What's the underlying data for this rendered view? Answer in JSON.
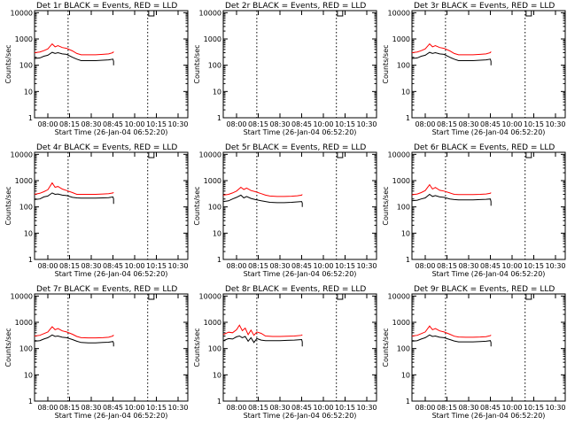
{
  "chart_data": {
    "type": "line",
    "layout": "3x3 grid",
    "ylabel": "Counts/sec",
    "xlabel": "Start Time (26-Jan-04 06:52:20)",
    "yscale": "log",
    "ylim": [
      1,
      12000
    ],
    "xlim": [
      "07:50",
      "10:35"
    ],
    "yticks": [
      {
        "value": 1,
        "label": "1"
      },
      {
        "value": 10,
        "label": "10"
      },
      {
        "value": 100,
        "label": "100"
      },
      {
        "value": 1000,
        "label": "1000"
      },
      {
        "value": 10000,
        "label": "10000"
      }
    ],
    "xticks": [
      "08:00",
      "08:15",
      "08:30",
      "08:45",
      "10:00",
      "10:15",
      "10:30"
    ],
    "series_legend": "BLACK = Events, RED = LLD",
    "panels": [
      {
        "title": "Det 1r BLACK = Events, RED = LLD",
        "markers": [
          "08:14",
          "10:09"
        ],
        "flag": "10:10",
        "series": [
          {
            "name": "Events",
            "color": "#000000",
            "x": [
              "07:50",
              "07:54",
              "07:57",
              "08:00",
              "08:03",
              "08:05",
              "08:07",
              "08:10",
              "08:13",
              "08:17",
              "08:20",
              "08:23",
              "08:28",
              "08:33",
              "08:38",
              "08:42",
              "08:45",
              "08:47",
              "08:47"
            ],
            "values": [
              180,
              190,
              220,
              240,
              310,
              280,
              300,
              270,
              260,
              200,
              170,
              150,
              150,
              150,
              155,
              160,
              170,
              140,
              100
            ]
          },
          {
            "name": "LLD",
            "color": "#ff0000",
            "x": [
              "07:50",
              "07:54",
              "07:57",
              "08:00",
              "08:03",
              "08:05",
              "08:07",
              "08:10",
              "08:13",
              "08:17",
              "08:20",
              "08:23",
              "08:28",
              "08:33",
              "08:38",
              "08:42",
              "08:45",
              "08:47"
            ],
            "values": [
              300,
              320,
              360,
              420,
              650,
              500,
              560,
              470,
              440,
              350,
              280,
              250,
              250,
              250,
              260,
              270,
              300,
              330
            ]
          }
        ]
      },
      {
        "title": "Det 2r BLACK = Events, RED = LLD",
        "markers": [
          "08:14",
          "10:09"
        ],
        "flag": "10:10",
        "series": []
      },
      {
        "title": "Det 3r BLACK = Events, RED = LLD",
        "markers": [
          "08:14",
          "10:09"
        ],
        "flag": "10:10",
        "series": [
          {
            "name": "Events",
            "color": "#000000",
            "x": [
              "07:50",
              "07:54",
              "07:57",
              "08:00",
              "08:03",
              "08:05",
              "08:07",
              "08:10",
              "08:13",
              "08:17",
              "08:20",
              "08:23",
              "08:28",
              "08:33",
              "08:38",
              "08:42",
              "08:45",
              "08:47",
              "08:47"
            ],
            "values": [
              180,
              190,
              220,
              240,
              310,
              280,
              300,
              270,
              260,
              200,
              170,
              150,
              150,
              150,
              155,
              160,
              170,
              140,
              100
            ]
          },
          {
            "name": "LLD",
            "color": "#ff0000",
            "x": [
              "07:50",
              "07:54",
              "07:57",
              "08:00",
              "08:03",
              "08:05",
              "08:07",
              "08:10",
              "08:13",
              "08:17",
              "08:20",
              "08:23",
              "08:28",
              "08:33",
              "08:38",
              "08:42",
              "08:45",
              "08:47"
            ],
            "values": [
              300,
              320,
              360,
              420,
              650,
              500,
              560,
              470,
              440,
              350,
              280,
              250,
              250,
              250,
              260,
              270,
              300,
              330
            ]
          }
        ]
      },
      {
        "title": "Det 4r BLACK = Events, RED = LLD",
        "markers": [
          "08:14",
          "10:09"
        ],
        "flag": "10:10",
        "series": [
          {
            "name": "Events",
            "color": "#000000",
            "x": [
              "07:50",
              "07:54",
              "07:57",
              "08:00",
              "08:03",
              "08:05",
              "08:07",
              "08:10",
              "08:13",
              "08:17",
              "08:20",
              "08:23",
              "08:28",
              "08:33",
              "08:38",
              "08:42",
              "08:45",
              "08:47",
              "08:47"
            ],
            "values": [
              190,
              200,
              240,
              260,
              340,
              300,
              310,
              280,
              270,
              230,
              220,
              215,
              215,
              215,
              220,
              225,
              240,
              200,
              130
            ]
          },
          {
            "name": "LLD",
            "color": "#ff0000",
            "x": [
              "07:50",
              "07:54",
              "07:57",
              "08:00",
              "08:03",
              "08:05",
              "08:07",
              "08:10",
              "08:13",
              "08:17",
              "08:20",
              "08:23",
              "08:28",
              "08:33",
              "08:38",
              "08:42",
              "08:45",
              "08:47"
            ],
            "values": [
              300,
              330,
              380,
              450,
              820,
              560,
              600,
              480,
              420,
              350,
              300,
              300,
              300,
              300,
              310,
              320,
              340,
              360
            ]
          }
        ]
      },
      {
        "title": "Det 5r BLACK = Events, RED = LLD",
        "markers": [
          "08:14",
          "10:09"
        ],
        "flag": "10:10",
        "series": [
          {
            "name": "Events",
            "color": "#000000",
            "x": [
              "07:50",
              "07:54",
              "07:57",
              "08:00",
              "08:03",
              "08:05",
              "08:07",
              "08:10",
              "08:13",
              "08:17",
              "08:20",
              "08:23",
              "08:28",
              "08:33",
              "08:38",
              "08:42",
              "08:45",
              "08:47",
              "08:47"
            ],
            "values": [
              160,
              170,
              200,
              230,
              280,
              220,
              250,
              210,
              190,
              170,
              160,
              150,
              145,
              145,
              150,
              155,
              160,
              140,
              100
            ]
          },
          {
            "name": "LLD",
            "color": "#ff0000",
            "x": [
              "07:50",
              "07:54",
              "07:57",
              "08:00",
              "08:03",
              "08:05",
              "08:07",
              "08:10",
              "08:13",
              "08:17",
              "08:20",
              "08:23",
              "08:28",
              "08:33",
              "08:38",
              "08:42",
              "08:45",
              "08:47"
            ],
            "values": [
              280,
              300,
              340,
              400,
              560,
              460,
              520,
              420,
              380,
              320,
              280,
              260,
              250,
              250,
              255,
              265,
              280,
              300
            ]
          }
        ]
      },
      {
        "title": "Det 6r BLACK = Events, RED = LLD",
        "markers": [
          "08:14",
          "10:09"
        ],
        "flag": "10:10",
        "series": [
          {
            "name": "Events",
            "color": "#000000",
            "x": [
              "07:50",
              "07:54",
              "07:57",
              "08:00",
              "08:03",
              "08:05",
              "08:07",
              "08:10",
              "08:13",
              "08:17",
              "08:20",
              "08:23",
              "08:28",
              "08:33",
              "08:38",
              "08:42",
              "08:45",
              "08:47",
              "08:47"
            ],
            "values": [
              170,
              180,
              200,
              220,
              300,
              250,
              270,
              240,
              230,
              200,
              190,
              185,
              185,
              185,
              190,
              195,
              200,
              160,
              110
            ]
          },
          {
            "name": "LLD",
            "color": "#ff0000",
            "x": [
              "07:50",
              "07:54",
              "07:57",
              "08:00",
              "08:03",
              "08:05",
              "08:07",
              "08:10",
              "08:13",
              "08:17",
              "08:20",
              "08:23",
              "08:28",
              "08:33",
              "08:38",
              "08:42",
              "08:45",
              "08:47"
            ],
            "values": [
              290,
              310,
              350,
              420,
              700,
              480,
              550,
              430,
              400,
              340,
              300,
              295,
              295,
              295,
              300,
              310,
              330,
              350
            ]
          }
        ]
      },
      {
        "title": "Det 7r BLACK = Events, RED = LLD",
        "markers": [
          "08:14",
          "10:09"
        ],
        "flag": "10:10",
        "series": [
          {
            "name": "Events",
            "color": "#000000",
            "x": [
              "07:50",
              "07:54",
              "07:57",
              "08:00",
              "08:03",
              "08:05",
              "08:07",
              "08:10",
              "08:13",
              "08:17",
              "08:20",
              "08:23",
              "08:28",
              "08:33",
              "08:38",
              "08:42",
              "08:45",
              "08:47",
              "08:47"
            ],
            "values": [
              190,
              200,
              230,
              260,
              330,
              290,
              300,
              270,
              260,
              220,
              190,
              170,
              165,
              165,
              170,
              175,
              185,
              160,
              120
            ]
          },
          {
            "name": "LLD",
            "color": "#ff0000",
            "x": [
              "07:50",
              "07:54",
              "07:57",
              "08:00",
              "08:03",
              "08:05",
              "08:07",
              "08:10",
              "08:13",
              "08:17",
              "08:20",
              "08:23",
              "08:28",
              "08:33",
              "08:38",
              "08:42",
              "08:45",
              "08:47"
            ],
            "values": [
              300,
              320,
              370,
              430,
              680,
              520,
              580,
              470,
              430,
              350,
              290,
              260,
              255,
              255,
              260,
              270,
              300,
              330
            ]
          }
        ]
      },
      {
        "title": "Det 8r BLACK = Events, RED = LLD",
        "markers": [
          "08:14",
          "10:09"
        ],
        "flag": "10:10",
        "series": [
          {
            "name": "Events",
            "color": "#000000",
            "x": [
              "07:50",
              "07:54",
              "07:57",
              "08:00",
              "08:02",
              "08:04",
              "08:06",
              "08:08",
              "08:10",
              "08:12",
              "08:14",
              "08:17",
              "08:20",
              "08:25",
              "08:30",
              "08:35",
              "08:40",
              "08:45",
              "08:47",
              "08:47"
            ],
            "values": [
              200,
              240,
              230,
              280,
              300,
              260,
              290,
              190,
              260,
              170,
              240,
              210,
              200,
              200,
              200,
              205,
              210,
              220,
              180,
              120
            ]
          },
          {
            "name": "LLD",
            "color": "#ff0000",
            "x": [
              "07:50",
              "07:54",
              "07:57",
              "08:00",
              "08:02",
              "08:04",
              "08:06",
              "08:08",
              "08:10",
              "08:12",
              "08:14",
              "08:17",
              "08:20",
              "08:25",
              "08:30",
              "08:35",
              "08:40",
              "08:45",
              "08:47"
            ],
            "values": [
              340,
              420,
              400,
              520,
              780,
              480,
              600,
              340,
              500,
              320,
              430,
              380,
              300,
              290,
              290,
              295,
              300,
              320,
              340
            ]
          }
        ]
      },
      {
        "title": "Det 9r BLACK = Events, RED = LLD",
        "markers": [
          "08:14",
          "10:09"
        ],
        "flag": "10:10",
        "series": [
          {
            "name": "Events",
            "color": "#000000",
            "x": [
              "07:50",
              "07:54",
              "07:57",
              "08:00",
              "08:03",
              "08:05",
              "08:07",
              "08:10",
              "08:13",
              "08:17",
              "08:20",
              "08:23",
              "08:28",
              "08:33",
              "08:38",
              "08:42",
              "08:45",
              "08:47",
              "08:47"
            ],
            "values": [
              190,
              200,
              230,
              260,
              330,
              290,
              300,
              270,
              260,
              220,
              195,
              180,
              180,
              180,
              185,
              190,
              200,
              170,
              120
            ]
          },
          {
            "name": "LLD",
            "color": "#ff0000",
            "x": [
              "07:50",
              "07:54",
              "07:57",
              "08:00",
              "08:03",
              "08:05",
              "08:07",
              "08:10",
              "08:13",
              "08:17",
              "08:20",
              "08:23",
              "08:28",
              "08:33",
              "08:38",
              "08:42",
              "08:45",
              "08:47"
            ],
            "values": [
              300,
              320,
              370,
              430,
              720,
              520,
              580,
              470,
              430,
              350,
              295,
              275,
              270,
              270,
              275,
              285,
              310,
              330
            ]
          }
        ]
      }
    ]
  }
}
